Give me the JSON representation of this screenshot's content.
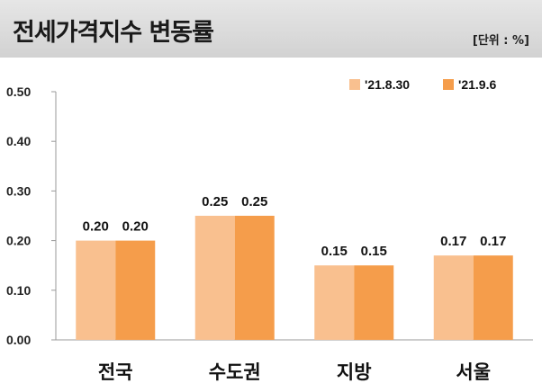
{
  "header": {
    "title": "전세가격지수 변동률",
    "unit": "[단위 : %]"
  },
  "colors": {
    "series1": "#f9c08f",
    "series2": "#f59d4b",
    "axis": "#999999"
  },
  "chart_data": {
    "type": "bar",
    "title": "전세가격지수 변동률",
    "xlabel": "",
    "ylabel": "",
    "ylim": [
      0,
      0.5
    ],
    "yticks": [
      "0.00",
      "0.10",
      "0.20",
      "0.30",
      "0.40",
      "0.50"
    ],
    "grid": false,
    "legend_position": "top-right",
    "categories": [
      "전국",
      "수도권",
      "지방",
      "서울"
    ],
    "series": [
      {
        "name": "'21.8.30",
        "values": [
          0.2,
          0.25,
          0.15,
          0.17
        ],
        "labels": [
          "0.20",
          "0.25",
          "0.15",
          "0.17"
        ]
      },
      {
        "name": "'21.9.6",
        "values": [
          0.2,
          0.25,
          0.15,
          0.17
        ],
        "labels": [
          "0.20",
          "0.25",
          "0.15",
          "0.17"
        ]
      }
    ]
  }
}
